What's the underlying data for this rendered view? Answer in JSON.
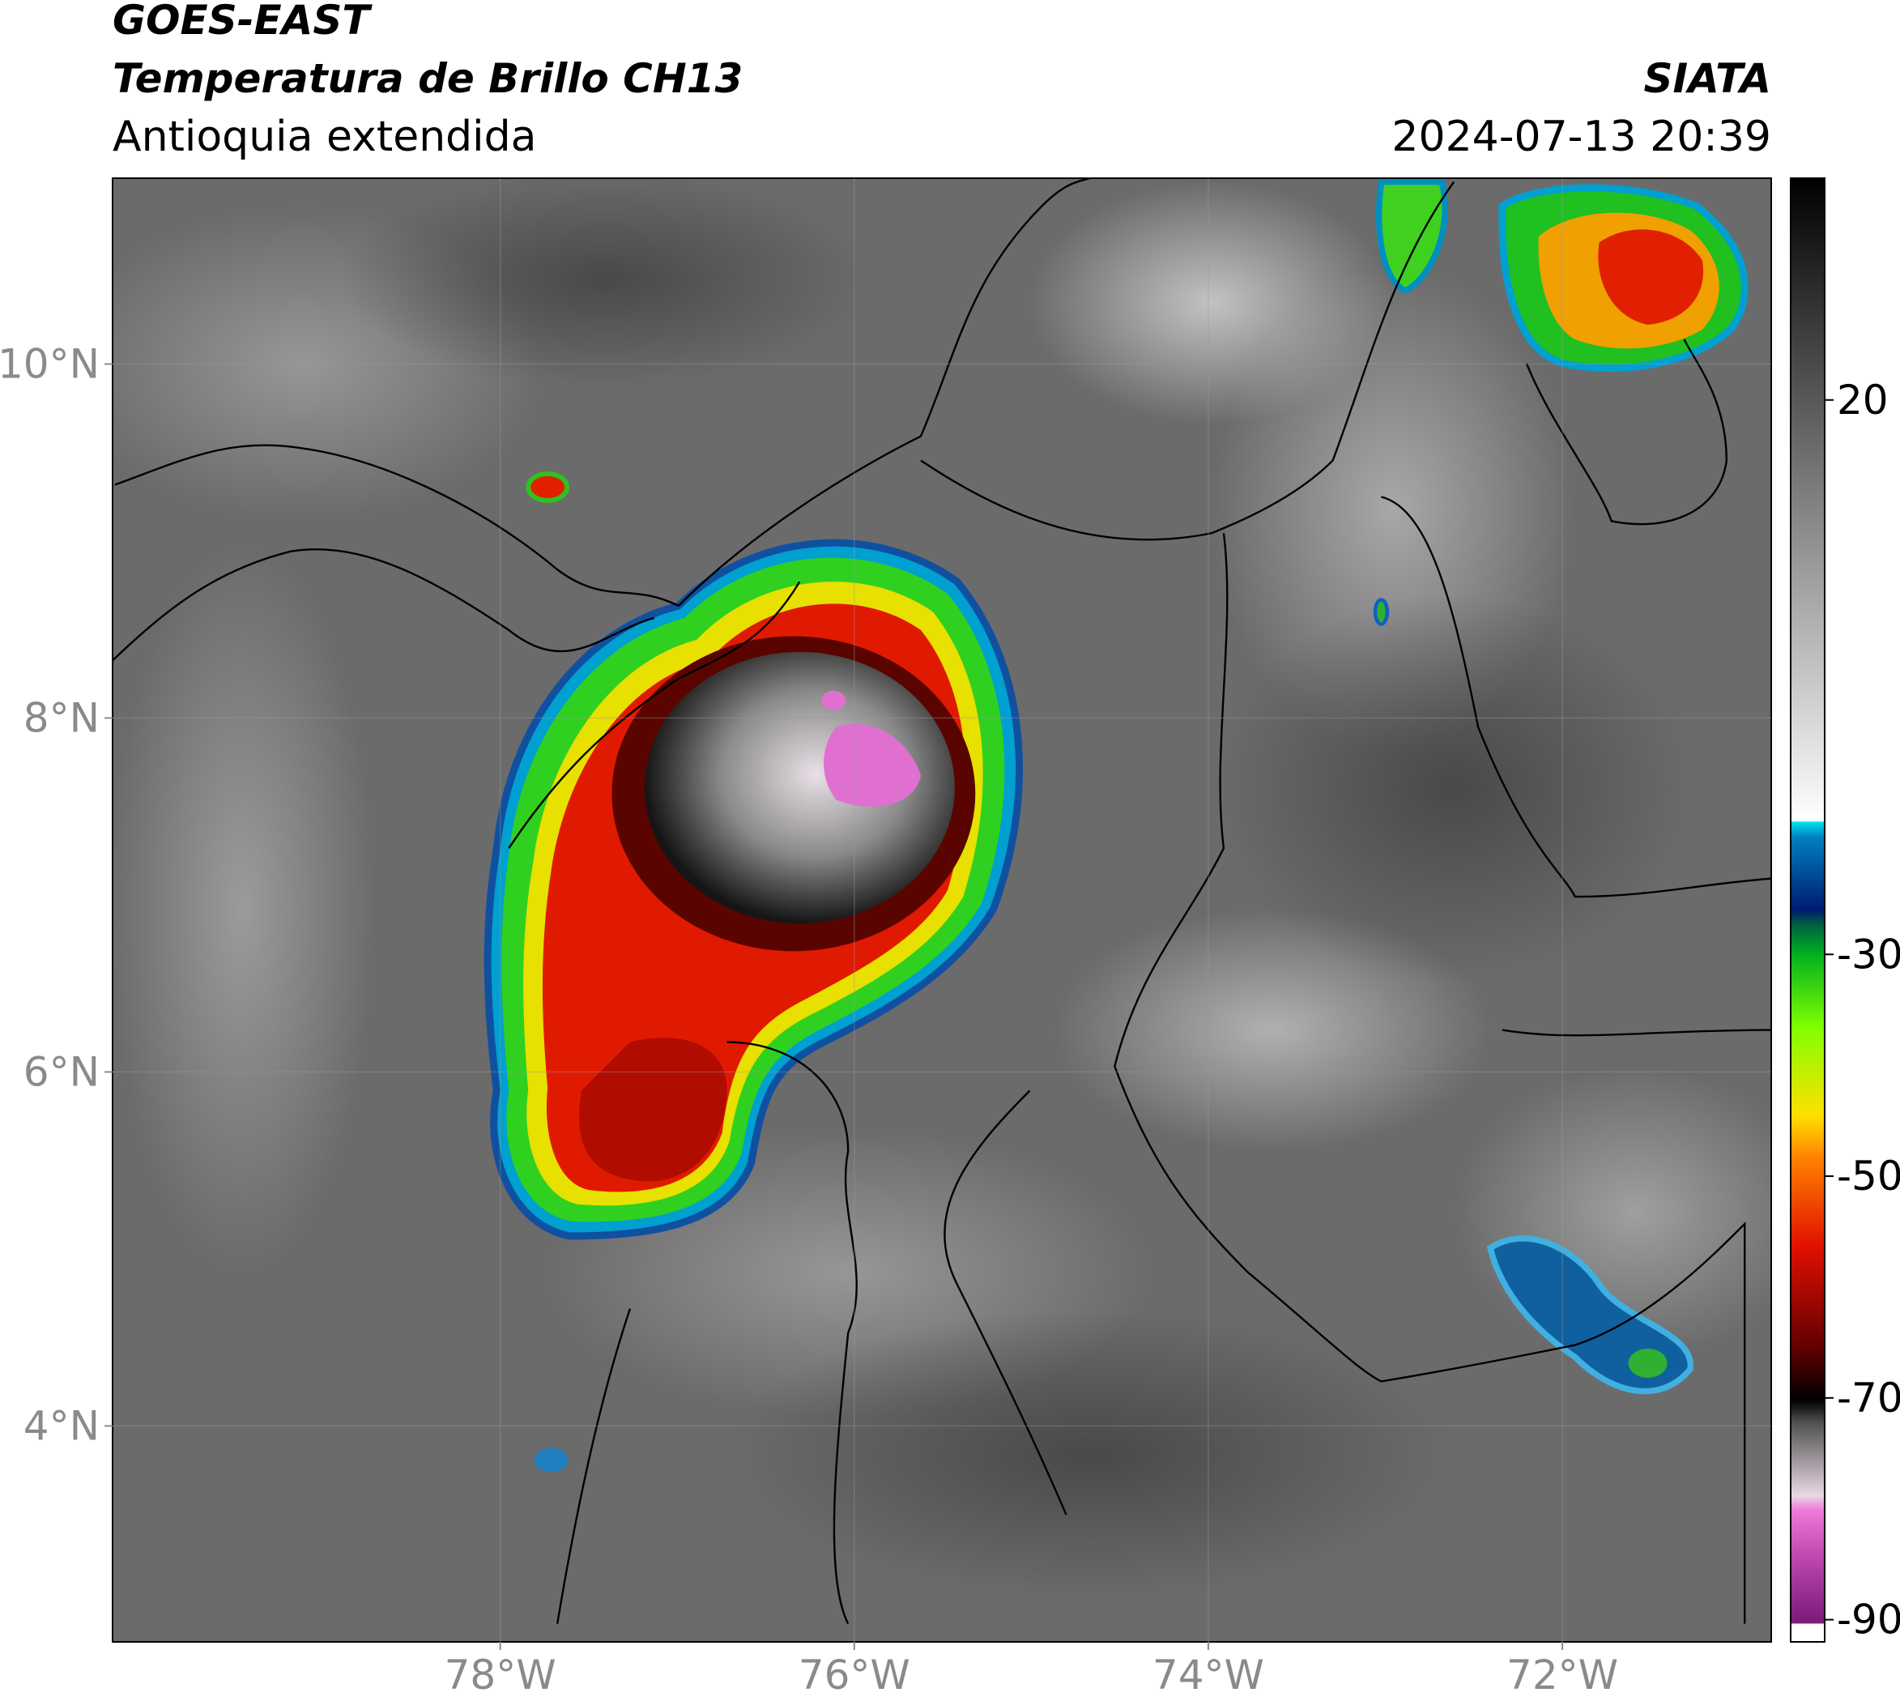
{
  "header": {
    "title": "GOES-EAST",
    "subtitle": "Temperatura de Brillo CH13",
    "region": "Antioquia extendida",
    "source": "SIATA",
    "datetime": "2024-07-13 20:39"
  },
  "map": {
    "xlim": [
      -80.19,
      -70.82
    ],
    "ylim": [
      2.78,
      11.05
    ],
    "xticks": [
      {
        "value": -78,
        "label": "78°W"
      },
      {
        "value": -76,
        "label": "76°W"
      },
      {
        "value": -74,
        "label": "74°W"
      },
      {
        "value": -72,
        "label": "72°W"
      }
    ],
    "yticks": [
      {
        "value": 4,
        "label": "4°N"
      },
      {
        "value": 6,
        "label": "6°N"
      },
      {
        "value": 8,
        "label": "8°N"
      },
      {
        "value": 10,
        "label": "10°N"
      }
    ],
    "grid": true
  },
  "colorbar": {
    "clim": [
      -92,
      40
    ],
    "ticks": [
      -90,
      -70,
      -50,
      -30,
      20
    ]
  }
}
